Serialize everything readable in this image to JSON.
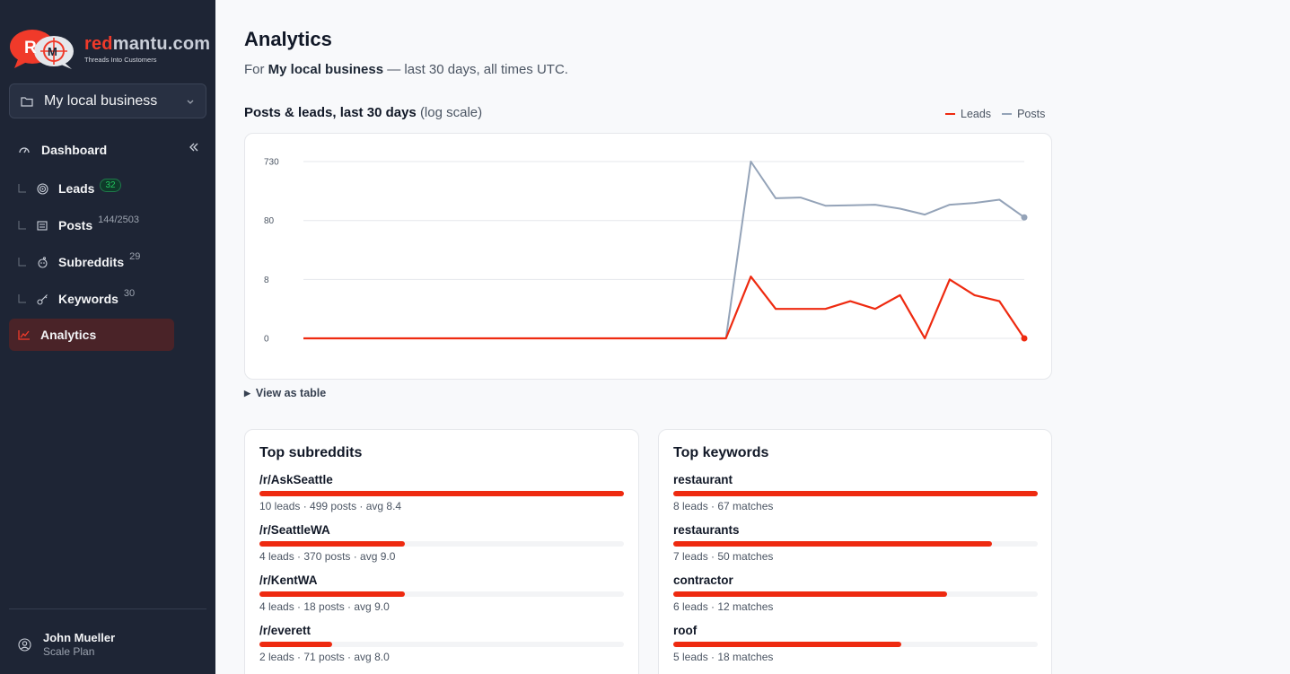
{
  "brand": {
    "name_red": "red",
    "name_rest": "mantu.com",
    "tagline": "Threads Into Customers"
  },
  "workspace": {
    "label": "My local business"
  },
  "nav": {
    "dashboard": "Dashboard",
    "items": [
      {
        "label": "Leads",
        "badge": "32"
      },
      {
        "label": "Posts",
        "count": "144/2503"
      },
      {
        "label": "Subreddits",
        "count": "29"
      },
      {
        "label": "Keywords",
        "count": "30"
      }
    ],
    "analytics": "Analytics"
  },
  "user": {
    "name": "John Mueller",
    "plan": "Scale Plan"
  },
  "page": {
    "title": "Analytics",
    "subtitle_prefix": "For ",
    "subtitle_business": "My local business",
    "subtitle_suffix": " — last 30 days, all times UTC."
  },
  "chart_section": {
    "title": "Posts & leads, last 30 days",
    "scale_note": "(log scale)",
    "view_table": "View as table"
  },
  "colors": {
    "leads": "#ee2a10",
    "posts": "#94a3b8",
    "accent": "#ee2a10"
  },
  "chart_data": {
    "type": "line",
    "yscale": "log",
    "yticks": [
      "730",
      "80",
      "8",
      "0"
    ],
    "x": [
      1,
      2,
      3,
      4,
      5,
      6,
      7,
      8,
      9,
      10,
      11,
      12,
      13,
      14,
      15,
      16,
      17,
      18,
      19,
      20,
      21,
      22,
      23,
      24,
      25,
      26,
      27,
      28,
      29,
      30
    ],
    "series": [
      {
        "name": "Leads",
        "values": [
          0,
          0,
          0,
          0,
          0,
          0,
          0,
          0,
          0,
          0,
          0,
          0,
          0,
          0,
          0,
          0,
          0,
          0,
          9,
          2,
          2,
          2,
          3,
          2,
          4,
          0,
          8,
          4,
          3,
          0
        ]
      },
      {
        "name": "Posts",
        "values": [
          0,
          0,
          0,
          0,
          0,
          0,
          0,
          0,
          0,
          0,
          0,
          0,
          0,
          0,
          0,
          0,
          0,
          0,
          730,
          185,
          190,
          140,
          142,
          145,
          125,
          100,
          145,
          155,
          175,
          90
        ]
      }
    ],
    "legend_position": "top-right",
    "grid": true
  },
  "top_subreddits": {
    "title": "Top subreddits",
    "rows": [
      {
        "name": "/r/AskSeattle",
        "meta": "10 leads · 499 posts · avg 8.4",
        "share": 1.0
      },
      {
        "name": "/r/SeattleWA",
        "meta": "4 leads · 370 posts · avg 9.0",
        "share": 0.4
      },
      {
        "name": "/r/KentWA",
        "meta": "4 leads · 18 posts · avg 9.0",
        "share": 0.4
      },
      {
        "name": "/r/everett",
        "meta": "2 leads · 71 posts · avg 8.0",
        "share": 0.2
      }
    ]
  },
  "top_keywords": {
    "title": "Top keywords",
    "rows": [
      {
        "name": "restaurant",
        "meta": "8 leads · 67 matches",
        "share": 1.0
      },
      {
        "name": "restaurants",
        "meta": "7 leads · 50 matches",
        "share": 0.875
      },
      {
        "name": "contractor",
        "meta": "6 leads · 12 matches",
        "share": 0.75
      },
      {
        "name": "roof",
        "meta": "5 leads · 18 matches",
        "share": 0.625
      }
    ]
  }
}
